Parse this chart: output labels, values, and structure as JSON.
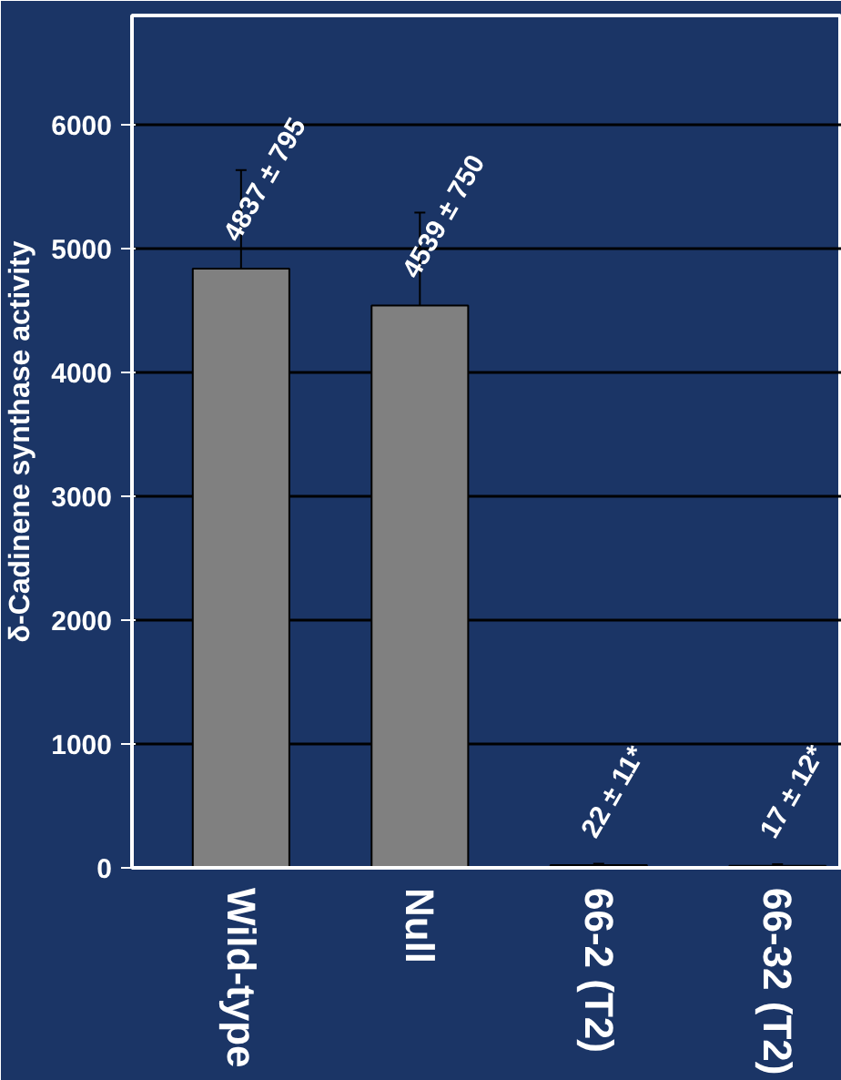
{
  "chart_data": {
    "type": "bar",
    "ylabel": "δ-Cadinene synthase activity",
    "categories": [
      "Wild-type",
      "Null",
      "66-2 (T2)",
      "66-32 (T2)"
    ],
    "values": [
      4837,
      4539,
      22,
      17
    ],
    "errors": [
      795,
      750,
      11,
      12
    ],
    "value_labels": [
      "4837 ± 795",
      "4539 ± 750",
      "22 ± 11*",
      "17 ± 12*"
    ],
    "color": "#808080",
    "ylim": [
      0,
      6880
    ],
    "yticks": [
      0,
      1000,
      2000,
      3000,
      4000,
      5000,
      6000
    ],
    "grid": "y"
  }
}
